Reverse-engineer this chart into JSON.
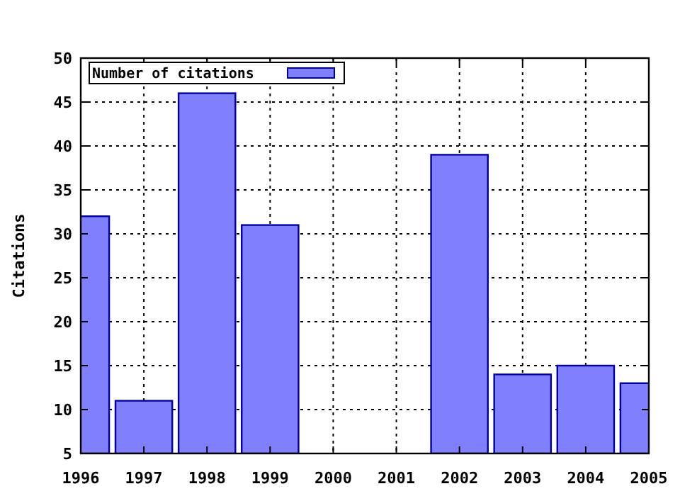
{
  "chart_data": {
    "type": "bar",
    "ylabel": "Citations",
    "x": [
      1996,
      1997,
      1998,
      1999,
      2000,
      2001,
      2002,
      2003,
      2004,
      2005
    ],
    "series": [
      {
        "name": "Number of citations",
        "color": "#8080ff",
        "values": [
          32,
          11,
          46,
          31,
          null,
          null,
          39,
          14,
          15,
          13
        ]
      }
    ],
    "xlim": [
      1996,
      2005
    ],
    "xticks": [
      1996,
      1997,
      1998,
      1999,
      2000,
      2001,
      2002,
      2003,
      2004,
      2005
    ],
    "ylim": [
      5,
      50
    ],
    "yticks": [
      5,
      10,
      15,
      20,
      25,
      30,
      35,
      40,
      45,
      50
    ],
    "grid": true,
    "legend": "top left"
  }
}
